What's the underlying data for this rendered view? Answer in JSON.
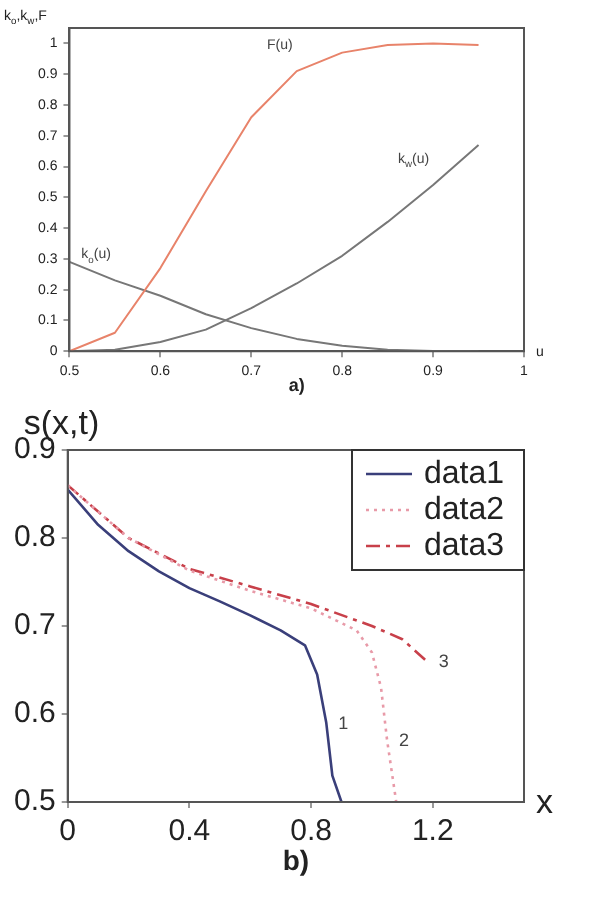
{
  "chart_data": [
    {
      "type": "line",
      "xlabel": "u",
      "ylabel": "k$_{o}$,k$_{w}$,F",
      "xlim": [
        0.5,
        1
      ],
      "ylim": [
        0,
        1.05
      ],
      "xticks": [
        0.5,
        0.6,
        0.7,
        0.8,
        0.9,
        1
      ],
      "yticks": [
        0,
        0.1,
        0.2,
        0.3,
        0.4,
        0.5,
        0.6,
        0.7,
        0.8,
        0.9,
        1
      ],
      "grid": false,
      "legend": false,
      "marker": "none",
      "series": [
        {
          "color": "#e8836a",
          "line_style": "solid",
          "x": [
            0.5,
            0.55,
            0.6,
            0.65,
            0.7,
            0.75,
            0.8,
            0.85,
            0.9,
            0.95
          ],
          "values": [
            0,
            0.06,
            0.27,
            0.52,
            0.76,
            0.91,
            0.97,
            0.995,
            1.0,
            0.995
          ]
        },
        {
          "color": "#777777",
          "line_style": "solid",
          "x": [
            0.5,
            0.55,
            0.6,
            0.65,
            0.7,
            0.75,
            0.8,
            0.85,
            0.9,
            0.95
          ],
          "values": [
            0.29,
            0.23,
            0.18,
            0.12,
            0.075,
            0.04,
            0.018,
            0.005,
            0.001,
            0
          ]
        },
        {
          "color": "#777777",
          "line_style": "solid",
          "x": [
            0.5,
            0.55,
            0.6,
            0.65,
            0.7,
            0.75,
            0.8,
            0.85,
            0.9,
            0.95
          ],
          "values": [
            0,
            0.005,
            0.03,
            0.07,
            0.14,
            0.22,
            0.31,
            0.42,
            0.54,
            0.67
          ]
        }
      ],
      "annotations": [
        {
          "text": "F(u)",
          "x": 0.75,
          "y": 0.91
        },
        {
          "text": "k$_{w}$(u)",
          "x": 0.9,
          "y": 0.54
        },
        {
          "text": "k$_{o}$(u)",
          "x": 0.55,
          "y": 0.23
        },
        "a)"
      ]
    },
    {
      "type": "line",
      "xlabel": "x",
      "ylabel": "s(x,t)",
      "xlim": [
        0,
        1.5
      ],
      "ylim": [
        0.5,
        0.9
      ],
      "xticks": [
        0,
        0.4,
        0.8,
        1.2
      ],
      "yticks": [
        0.5,
        0.6,
        0.7,
        0.8,
        0.9
      ],
      "grid": false,
      "legend": "top right",
      "marker": "none",
      "series": [
        {
          "name": "data1",
          "color": "#3a3f7a",
          "line_style": "solid",
          "x": [
            0,
            0.1,
            0.2,
            0.3,
            0.4,
            0.5,
            0.6,
            0.7,
            0.78,
            0.82,
            0.85,
            0.87,
            0.9
          ],
          "values": [
            0.855,
            0.815,
            0.785,
            0.762,
            0.743,
            0.728,
            0.712,
            0.695,
            0.678,
            0.645,
            0.59,
            0.53,
            0.5
          ]
        },
        {
          "name": "data2",
          "color": "#e89aa8",
          "line_style": "dotted",
          "x": [
            0,
            0.2,
            0.4,
            0.6,
            0.8,
            0.95,
            1.0,
            1.03,
            1.05,
            1.08
          ],
          "values": [
            0.86,
            0.8,
            0.763,
            0.74,
            0.72,
            0.695,
            0.67,
            0.63,
            0.57,
            0.5
          ]
        },
        {
          "name": "data3",
          "color": "#c8404a",
          "line_style": "dashed",
          "x": [
            0,
            0.2,
            0.4,
            0.6,
            0.8,
            1.0,
            1.1,
            1.18
          ],
          "values": [
            0.86,
            0.8,
            0.765,
            0.745,
            0.725,
            0.7,
            0.685,
            0.66
          ]
        }
      ],
      "annotations": [
        {
          "text": "1",
          "x": 0.85,
          "y": 0.59
        },
        {
          "text": "2",
          "x": 1.05,
          "y": 0.57
        },
        {
          "text": "3",
          "x": 1.18,
          "y": 0.66
        },
        "b)"
      ]
    }
  ]
}
